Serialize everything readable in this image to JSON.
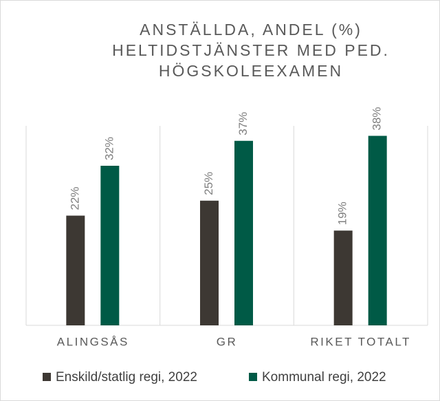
{
  "chart_data": {
    "type": "bar",
    "title": [
      "ANSTÄLLDA, ANDEL (%)",
      "HELTIDSTJÄNSTER MED PED.",
      "HÖGSKOLEEXAMEN"
    ],
    "categories": [
      "ALINGSÅS",
      "GR",
      "RIKET TOTALT"
    ],
    "series": [
      {
        "name": "Enskild/statlig regi, 2022",
        "color": "#3d3833",
        "values": [
          22,
          25,
          19
        ],
        "value_labels": [
          "22%",
          "25%",
          "19%"
        ]
      },
      {
        "name": "Kommunal regi, 2022",
        "color": "#005a46",
        "values": [
          32,
          37,
          38
        ],
        "value_labels": [
          "32%",
          "37%",
          "38%"
        ]
      }
    ],
    "ylim": [
      0,
      40
    ],
    "legend": "bottom"
  }
}
